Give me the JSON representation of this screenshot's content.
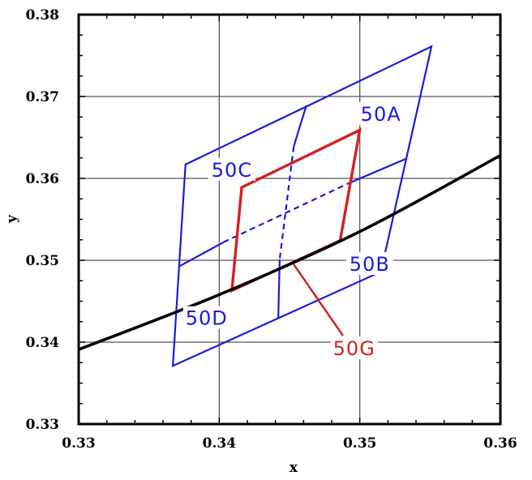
{
  "chart_data": {
    "type": "line",
    "xlabel": "x",
    "ylabel": "y",
    "xlim": [
      0.33,
      0.36
    ],
    "ylim": [
      0.33,
      0.38
    ],
    "x_ticks": [
      0.33,
      0.34,
      0.35,
      0.36
    ],
    "y_ticks": [
      0.33,
      0.34,
      0.35,
      0.36,
      0.37,
      0.38
    ],
    "x_tick_labels": [
      "0.33",
      "0.34",
      "0.35",
      "0.36"
    ],
    "y_tick_labels": [
      "0.33",
      "0.34",
      "0.35",
      "0.36",
      "0.37",
      "0.38"
    ],
    "grid": true,
    "colors": {
      "outer": "#1a1adc",
      "inner": "#d42020",
      "curve": "#000000"
    },
    "curve": {
      "points": [
        [
          0.33,
          0.3391
        ],
        [
          0.34,
          0.3458
        ],
        [
          0.35,
          0.3535
        ],
        [
          0.36,
          0.3628
        ]
      ]
    },
    "outer_region": {
      "corners": [
        [
          0.3367,
          0.3371
        ],
        [
          0.3376,
          0.3617
        ],
        [
          0.3551,
          0.3761
        ],
        [
          0.3515,
          0.3486
        ]
      ],
      "divider_v": {
        "top": [
          0.3462,
          0.3689
        ],
        "mid": [
          0.3453,
          0.3639
        ],
        "mid_low": [
          0.3443,
          0.3501
        ],
        "bottom": [
          0.3442,
          0.3429
        ]
      },
      "divider_h": {
        "left": [
          0.3372,
          0.3493
        ],
        "mid_left": [
          0.3403,
          0.3522
        ],
        "mid_right": [
          0.3492,
          0.3594
        ],
        "right": [
          0.3533,
          0.3624
        ]
      }
    },
    "inner_region": {
      "corners": [
        [
          0.3409,
          0.3463
        ],
        [
          0.3416,
          0.3589
        ],
        [
          0.35,
          0.3659
        ],
        [
          0.3486,
          0.3524
        ]
      ]
    },
    "annotations": [
      {
        "text": "50A",
        "x": 0.3515,
        "y": 0.3679,
        "color": "#1a1adc"
      },
      {
        "text": "50C",
        "x": 0.3409,
        "y": 0.3611,
        "color": "#1a1adc"
      },
      {
        "text": "50B",
        "x": 0.3507,
        "y": 0.3496,
        "color": "#1a1adc"
      },
      {
        "text": "50D",
        "x": 0.3391,
        "y": 0.343,
        "color": "#1a1adc"
      },
      {
        "text": "50G",
        "x": 0.3496,
        "y": 0.3393,
        "color": "#d42020"
      }
    ],
    "pointer": {
      "from": [
        0.3488,
        0.3408
      ],
      "to": [
        0.3453,
        0.3495
      ]
    }
  }
}
